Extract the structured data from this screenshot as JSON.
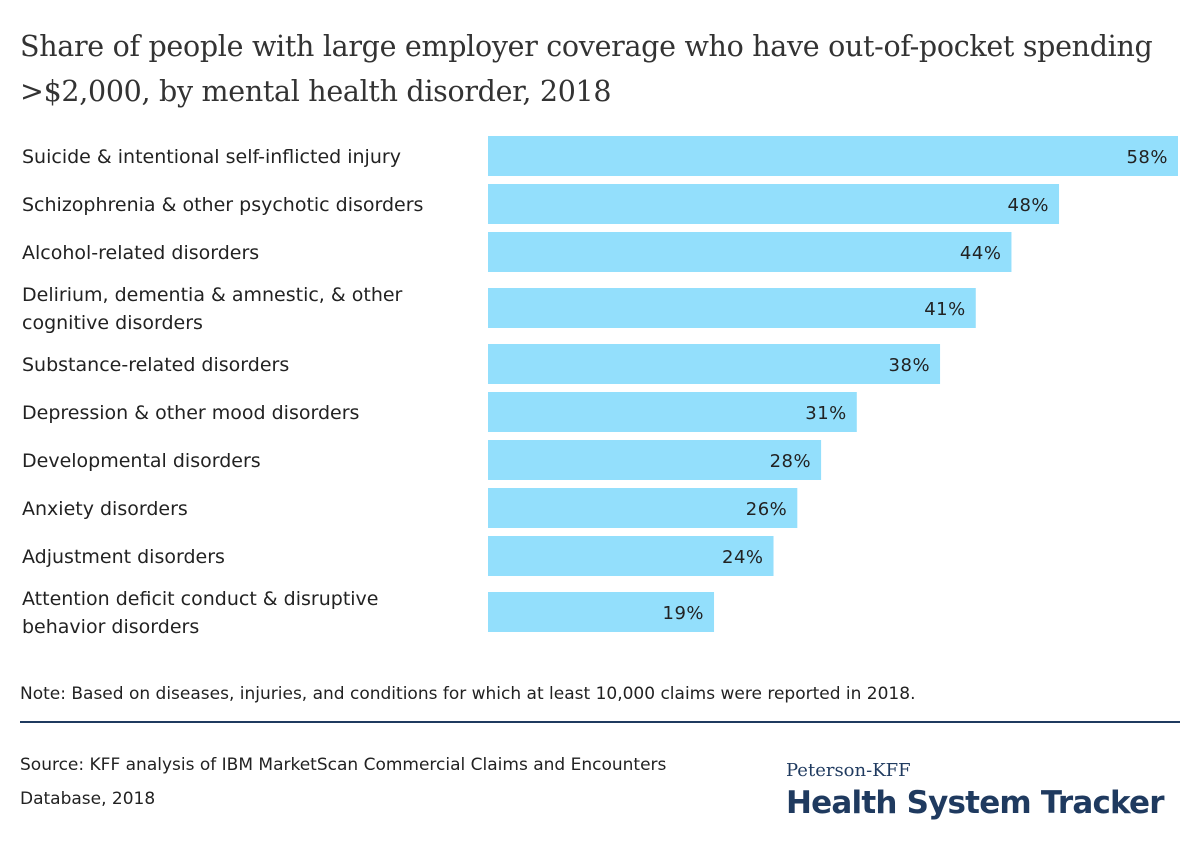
{
  "title": "Share of people with large employer coverage who have out-of-pocket spending >$2,000, by mental health disorder, 2018",
  "note": "Note: Based on diseases, injuries, and conditions for which at least 10,000 claims were reported in 2018.",
  "source": "Source: KFF analysis of IBM MarketScan Commercial Claims and Encounters Database, 2018",
  "logo": {
    "line1": "Peterson-KFF",
    "line2": "Health System Tracker"
  },
  "colors": {
    "bar": "#93dffc",
    "brand_navy": "#1f3a5f"
  },
  "chart_data": {
    "type": "bar",
    "orientation": "horizontal",
    "categories": [
      [
        "Suicide & intentional self-inflicted injury"
      ],
      [
        "Schizophrenia & other psychotic disorders"
      ],
      [
        "Alcohol-related disorders"
      ],
      [
        "Delirium, dementia & amnestic, & other",
        "cognitive disorders"
      ],
      [
        "Substance-related disorders"
      ],
      [
        "Depression & other mood disorders"
      ],
      [
        "Developmental disorders"
      ],
      [
        "Anxiety disorders"
      ],
      [
        "Adjustment disorders"
      ],
      [
        "Attention deficit conduct & disruptive",
        "behavior disorders"
      ]
    ],
    "values": [
      58,
      48,
      44,
      41,
      38,
      31,
      28,
      26,
      24,
      19
    ],
    "value_labels": [
      "58%",
      "48%",
      "44%",
      "41%",
      "38%",
      "31%",
      "28%",
      "26%",
      "24%",
      "19%"
    ],
    "unit": "%",
    "xlim": [
      0,
      58
    ],
    "grid": false,
    "legend": "none"
  }
}
